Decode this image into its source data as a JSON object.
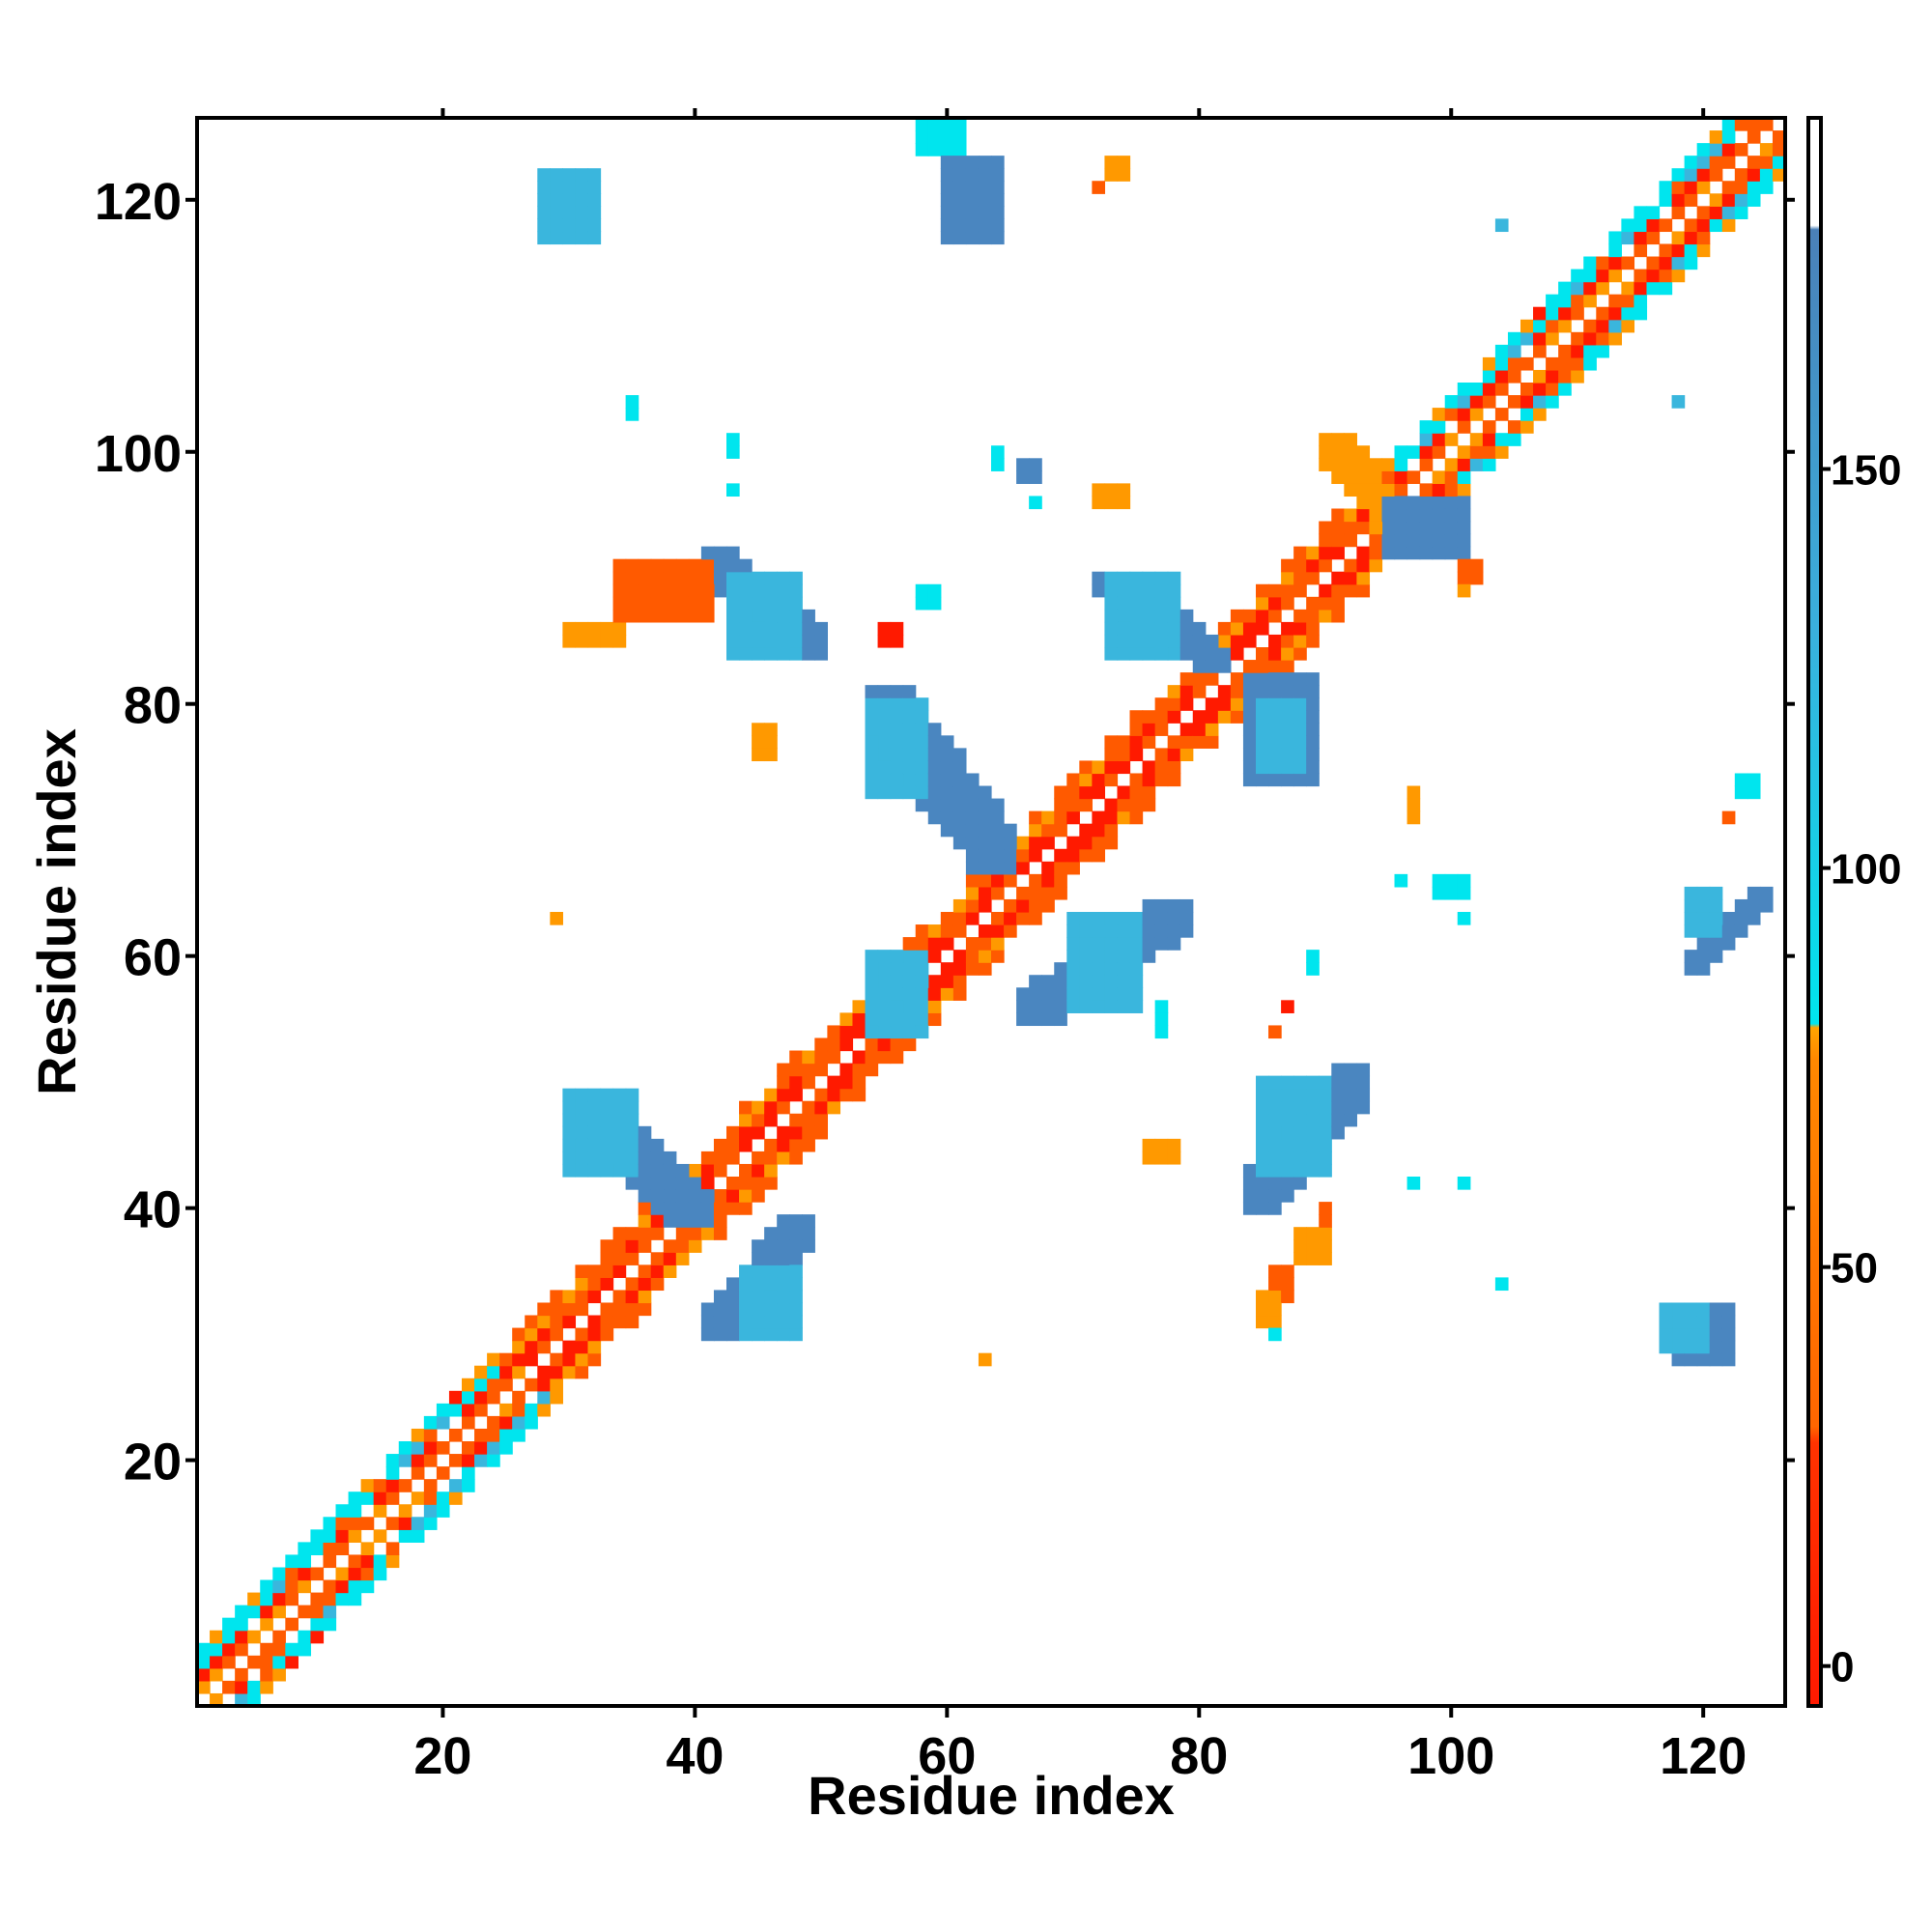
{
  "chart_data": {
    "type": "heatmap",
    "title": "",
    "xlabel": "Residue index",
    "ylabel": "Residue index",
    "xlim": [
      1,
      126
    ],
    "ylim": [
      1,
      126
    ],
    "xticks": [
      20,
      40,
      60,
      80,
      100,
      120
    ],
    "yticks": [
      20,
      40,
      60,
      80,
      100,
      120
    ],
    "grid": false,
    "colorbar": {
      "range": [
        -5,
        194
      ],
      "ticks": [
        0,
        50,
        100,
        150
      ],
      "bands": [
        {
          "from": -5,
          "to": 30,
          "color": "#ff1a00"
        },
        {
          "from": 30,
          "to": 78,
          "color": "#ff7700"
        },
        {
          "from": 78,
          "to": 80,
          "color": "#ffa500"
        },
        {
          "from": 80,
          "to": 180,
          "color": "#00e5ee"
        },
        {
          "from": 180,
          "to": 194,
          "color": "#ffffff"
        }
      ],
      "gradient_stops": [
        {
          "value": -5,
          "color": "#ff1a00"
        },
        {
          "value": 28,
          "color": "#ff3300"
        },
        {
          "value": 30,
          "color": "#ff6600"
        },
        {
          "value": 76,
          "color": "#ff8800"
        },
        {
          "value": 80,
          "color": "#ffa500"
        },
        {
          "value": 80.5,
          "color": "#00e5ee"
        },
        {
          "value": 130,
          "color": "#3ab0dd"
        },
        {
          "value": 180,
          "color": "#4a80b8"
        },
        {
          "value": 180.5,
          "color": "#ffffff"
        },
        {
          "value": 194,
          "color": "#ffffff"
        }
      ]
    },
    "palette": {
      "red": "#ff1a00",
      "orange_red": "#ff5a00",
      "orange": "#ff9900",
      "cyan": "#00e5ee",
      "light_blue": "#3ab6dd",
      "steel_blue": "#4a86c0"
    },
    "diagonal_band": {
      "from": 1,
      "to": 126,
      "halfwidth": 4,
      "helix_segments": [
        [
          1,
          27
        ],
        [
          95,
          126
        ]
      ],
      "strand_segments": [
        [
          28,
          94
        ]
      ]
    },
    "cells_note_values": "each item: [x_from, x_to, y_from, y_to, color_key]",
    "patches": [
      [
        28,
        32,
        117,
        122,
        "light_blue"
      ],
      [
        58,
        61,
        124,
        126,
        "cyan"
      ],
      [
        60,
        64,
        117,
        123,
        "steel_blue"
      ],
      [
        73,
        74,
        122,
        123,
        "orange"
      ],
      [
        72,
        72,
        121,
        121,
        "orange_red"
      ],
      [
        104,
        104,
        118,
        118,
        "light_blue"
      ],
      [
        35,
        35,
        103,
        104,
        "cyan"
      ],
      [
        43,
        43,
        100,
        101,
        "cyan"
      ],
      [
        43,
        43,
        97,
        97,
        "cyan"
      ],
      [
        64,
        64,
        99,
        100,
        "cyan"
      ],
      [
        66,
        67,
        98,
        99,
        "steel_blue"
      ],
      [
        67,
        67,
        96,
        96,
        "cyan"
      ],
      [
        72,
        74,
        96,
        97,
        "orange"
      ],
      [
        118,
        118,
        104,
        104,
        "light_blue"
      ],
      [
        41,
        50,
        84,
        92,
        "steel_blue"
      ],
      [
        43,
        48,
        84,
        90,
        "light_blue"
      ],
      [
        30,
        34,
        85,
        86,
        "orange"
      ],
      [
        34,
        41,
        87,
        91,
        "orange_red"
      ],
      [
        55,
        56,
        85,
        86,
        "red"
      ],
      [
        58,
        59,
        88,
        89,
        "cyan"
      ],
      [
        54,
        65,
        67,
        81,
        "steel_blue"
      ],
      [
        54,
        58,
        73,
        80,
        "light_blue"
      ],
      [
        45,
        46,
        76,
        78,
        "orange"
      ],
      [
        72,
        82,
        83,
        90,
        "steel_blue"
      ],
      [
        73,
        78,
        84,
        90,
        "light_blue"
      ],
      [
        84,
        89,
        74,
        82,
        "steel_blue"
      ],
      [
        85,
        88,
        75,
        80,
        "light_blue"
      ],
      [
        97,
        97,
        71,
        73,
        "orange"
      ],
      [
        96,
        96,
        66,
        66,
        "cyan"
      ],
      [
        99,
        101,
        65,
        66,
        "cyan"
      ],
      [
        101,
        101,
        63,
        63,
        "cyan"
      ],
      [
        119,
        125,
        59,
        65,
        "steel_blue"
      ],
      [
        119,
        121,
        62,
        65,
        "light_blue"
      ],
      [
        123,
        124,
        73,
        74,
        "cyan"
      ],
      [
        122,
        122,
        71,
        71,
        "orange_red"
      ],
      [
        66,
        79,
        55,
        64,
        "steel_blue"
      ],
      [
        70,
        75,
        56,
        63,
        "light_blue"
      ],
      [
        77,
        77,
        54,
        56,
        "cyan"
      ],
      [
        89,
        89,
        59,
        60,
        "cyan"
      ],
      [
        87,
        87,
        56,
        56,
        "red"
      ],
      [
        86,
        86,
        54,
        54,
        "orange_red"
      ],
      [
        54,
        58,
        54,
        60,
        "light_blue"
      ],
      [
        29,
        29,
        63,
        63,
        "orange"
      ],
      [
        30,
        41,
        39,
        49,
        "steel_blue"
      ],
      [
        30,
        35,
        43,
        49,
        "light_blue"
      ],
      [
        41,
        49,
        30,
        39,
        "steel_blue"
      ],
      [
        44,
        48,
        30,
        35,
        "light_blue"
      ],
      [
        84,
        93,
        40,
        51,
        "steel_blue"
      ],
      [
        85,
        90,
        43,
        50,
        "light_blue"
      ],
      [
        76,
        78,
        44,
        45,
        "orange"
      ],
      [
        90,
        90,
        38,
        40,
        "orange_red"
      ],
      [
        88,
        90,
        36,
        38,
        "orange"
      ],
      [
        86,
        87,
        33,
        35,
        "orange_red"
      ],
      [
        85,
        86,
        31,
        33,
        "orange"
      ],
      [
        86,
        86,
        30,
        30,
        "cyan"
      ],
      [
        97,
        97,
        42,
        42,
        "cyan"
      ],
      [
        101,
        101,
        42,
        42,
        "cyan"
      ],
      [
        104,
        104,
        34,
        34,
        "cyan"
      ],
      [
        63,
        63,
        28,
        28,
        "orange"
      ],
      [
        118,
        122,
        28,
        32,
        "steel_blue"
      ],
      [
        117,
        120,
        29,
        32,
        "light_blue"
      ],
      [
        90,
        98,
        92,
        101,
        "orange"
      ],
      [
        95,
        101,
        92,
        96,
        "steel_blue"
      ],
      [
        101,
        102,
        90,
        91,
        "orange_red"
      ],
      [
        101,
        101,
        89,
        89,
        "orange"
      ]
    ]
  }
}
